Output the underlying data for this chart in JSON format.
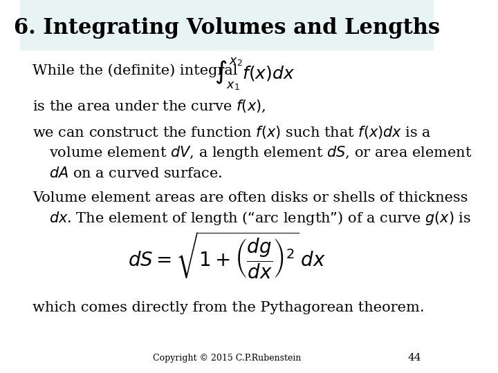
{
  "title": "6. Integrating Volumes and Lengths",
  "title_bg_color": "#e8f4f4",
  "bg_color": "#ffffff",
  "title_fontsize": 22,
  "body_fontsize": 15,
  "copyright_text": "Copyright © 2015 C.P.Rubenstein",
  "page_number": "44",
  "line1": "While the (definite) integral",
  "integral_formula": "$\\int_{x_1}^{x_2} f(x)dx$",
  "line2": "is the area under the curve $f(x)$,",
  "line3a": "we can construct the function $f(x)$ such that $f(x)dx$ is a",
  "line3b": "volume element $dV$, a length element $dS$, or area element",
  "line3c": "$dA$ on a curved surface.",
  "line4a": "Volume element areas are often disks or shells of thickness",
  "line4b": "$dx$. The element of length (“arc length”) of a curve $g(x)$ is",
  "ds_formula": "$dS = \\sqrt{1 + \\left(\\dfrac{dg}{dx}\\right)^2}\\, dx$",
  "line5": "which comes directly from the Pythagorean theorem."
}
